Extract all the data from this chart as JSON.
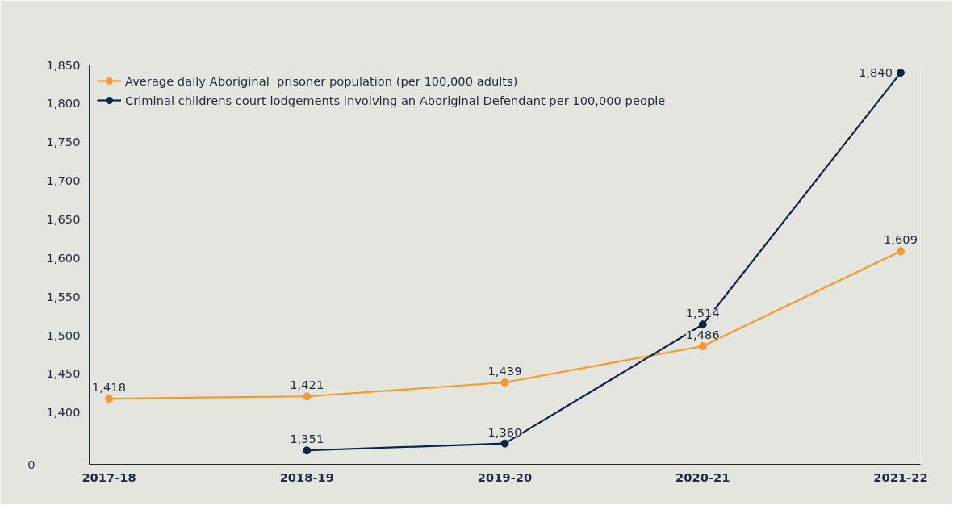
{
  "chart_data": {
    "type": "line",
    "categories": [
      "2017-18",
      "2018-19",
      "2019-20",
      "2020-21",
      "2021-22"
    ],
    "series": [
      {
        "name": "Average daily Aboriginal  prisoner population (per 100,000 adults)",
        "color": "#f39a2b",
        "values": [
          1418,
          1421,
          1439,
          1486,
          1609
        ],
        "value_labels": [
          "1,418",
          "1,421",
          "1,439",
          "1,486",
          "1,609"
        ]
      },
      {
        "name": "Criminal childrens court lodgements involving an Aboriginal Defendant per 100,000 people",
        "color": "#0c2448",
        "values": [
          null,
          1351,
          1360,
          1514,
          1840
        ],
        "value_labels": [
          null,
          "1,351",
          "1,360",
          "1,514",
          "1,840"
        ]
      }
    ],
    "ylim": [
      1333,
      1850
    ],
    "yticks": [
      {
        "value": 1400,
        "label": "1,400"
      },
      {
        "value": 1450,
        "label": "1,450"
      },
      {
        "value": 1500,
        "label": "1,500"
      },
      {
        "value": 1550,
        "label": "1,550"
      },
      {
        "value": 1600,
        "label": "1,600"
      },
      {
        "value": 1650,
        "label": "1,650"
      },
      {
        "value": 1700,
        "label": "1,700"
      },
      {
        "value": 1750,
        "label": "1,750"
      },
      {
        "value": 1800,
        "label": "1,800"
      },
      {
        "value": 1850,
        "label": "1,850"
      }
    ],
    "annotations": [
      "0"
    ],
    "grid": false,
    "legend": "top left",
    "marker": "circle",
    "line_style": "solid"
  }
}
